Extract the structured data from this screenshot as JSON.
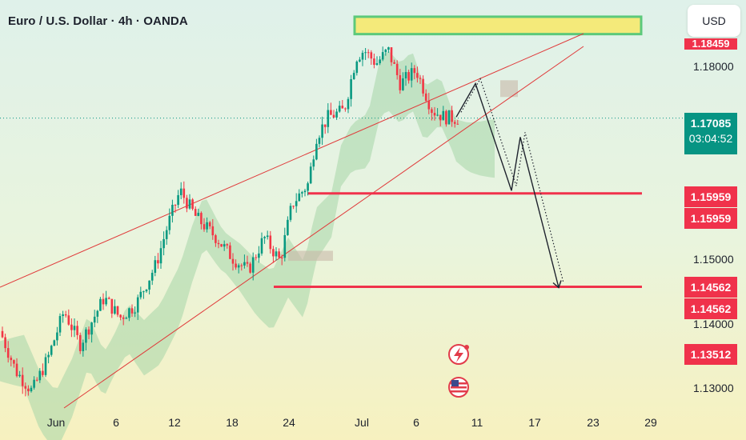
{
  "header": {
    "title": "Euro / U.S. Dollar · 4h · OANDA",
    "currency": "USD"
  },
  "colors": {
    "up": "#089981",
    "down": "#f23645",
    "cloud": "#a5d6a7",
    "cloud_bear": "#c8b8a8",
    "level": "#f0324b",
    "channel": "#e03a3a",
    "zone_fill": "#f4ea7a",
    "zone_border": "#5cc97a",
    "current": "#079483",
    "path": "#1e222d"
  },
  "price_axis": {
    "ticks": [
      "1.18000",
      "1.15000",
      "1.14000",
      "1.13000"
    ],
    "top_badge_partial": "1.18459",
    "current": {
      "price": "1.17085",
      "countdown": "03:04:52"
    },
    "badges": [
      "1.15959",
      "1.15959",
      "1.14562",
      "1.14562",
      "1.13512"
    ]
  },
  "time_axis": {
    "labels": [
      "Jun",
      "6",
      "12",
      "18",
      "24",
      "Jul",
      "6",
      "11",
      "17",
      "23",
      "29"
    ]
  },
  "chart_data": {
    "type": "candlestick",
    "symbol": "EURUSD",
    "interval": "4h",
    "y_range": [
      1.1275,
      1.1885
    ],
    "key_levels": [
      1.15959,
      1.14562
    ],
    "resistance_zone": [
      1.1834,
      1.186
    ],
    "current_price": 1.17085,
    "projection_path": [
      1.171,
      1.176,
      1.16,
      1.168,
      1.1455
    ],
    "x_labels": [
      "Jun",
      "6",
      "12",
      "18",
      "24",
      "Jul",
      "6",
      "11",
      "17",
      "23",
      "29"
    ]
  },
  "event_icons": [
    "lightning-event-icon",
    "us-flag-icon"
  ]
}
